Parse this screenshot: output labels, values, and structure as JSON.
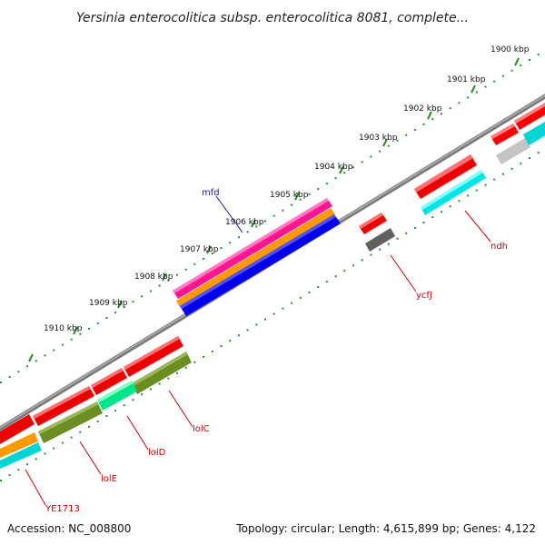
{
  "title": "Yersinia enterocolitica subsp. enterocolitica 8081, complete...",
  "ticks": [
    "1900 kbp",
    "1901 kbp",
    "1902 kbp",
    "1903 kbp",
    "1904 kbp",
    "1905 kbp",
    "1906 kbp",
    "1907 kbp",
    "1908 kbp",
    "1909 kbp",
    "1910 kbp"
  ],
  "gene_labels": {
    "mfd": "mfd",
    "ndh": "ndh",
    "ycfJ": "ycfJ",
    "lolC": "lolC",
    "lolD": "lolD",
    "lolE": "lolE",
    "ye1713": "YE1713"
  },
  "footer": {
    "accession": "Accession: NC_008800",
    "topology": "Topology: circular; Length: 4,615,899 bp; Genes: 4,122"
  },
  "colors": {
    "backbone": "#888888",
    "tick_green": "#2a8a2a",
    "red": "#ff0000",
    "cyan": "#00e5e5",
    "olive": "#6b8e23",
    "spring": "#00e58a",
    "magenta": "#ff1493",
    "orange": "#ff9900",
    "blue": "#0000ff",
    "darkgray": "#606060",
    "lightgray": "#c8c8c8"
  }
}
